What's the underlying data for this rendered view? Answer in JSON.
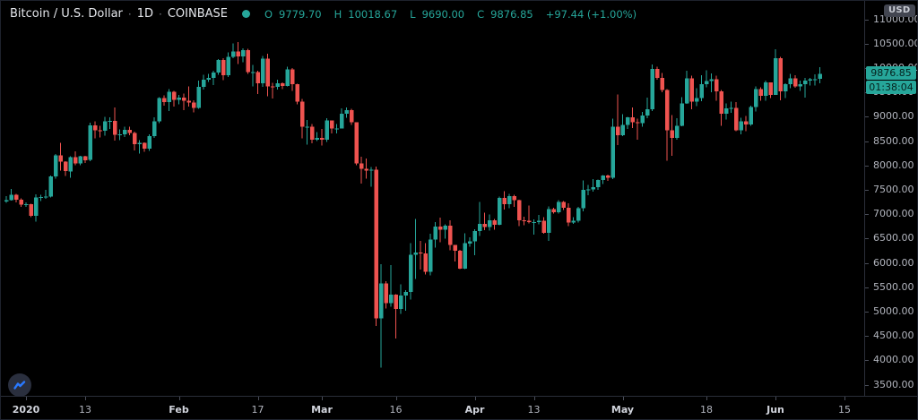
{
  "header": {
    "symbol_name": "Bitcoin / U.S. Dollar",
    "separator": "·",
    "interval": "1D",
    "exchange": "COINBASE",
    "ohlc": {
      "open_label": "O",
      "open": "9779.70",
      "high_label": "H",
      "high": "10018.67",
      "low_label": "L",
      "low": "9690.00",
      "close_label": "C",
      "close": "9876.85",
      "change": "+97.44 (+1.00%)"
    }
  },
  "price_scale": {
    "currency_badge": "USD",
    "labels": [
      "11000.00",
      "10500.00",
      "10000.00",
      "9500.00",
      "9000.00",
      "8500.00",
      "8000.00",
      "7500.00",
      "7000.00",
      "6500.00",
      "6000.00",
      "5500.00",
      "5000.00",
      "4500.00",
      "4000.00",
      "3500.00"
    ]
  },
  "time_scale": {
    "ticks": [
      {
        "label": "2020",
        "index": 4,
        "major": true
      },
      {
        "label": "13",
        "index": 16,
        "major": false
      },
      {
        "label": "Feb",
        "index": 35,
        "major": true
      },
      {
        "label": "17",
        "index": 51,
        "major": false
      },
      {
        "label": "Mar",
        "index": 64,
        "major": true
      },
      {
        "label": "16",
        "index": 79,
        "major": false
      },
      {
        "label": "Apr",
        "index": 95,
        "major": true
      },
      {
        "label": "13",
        "index": 107,
        "major": false
      },
      {
        "label": "May",
        "index": 125,
        "major": true
      },
      {
        "label": "18",
        "index": 142,
        "major": false
      },
      {
        "label": "Jun",
        "index": 156,
        "major": true
      },
      {
        "label": "15",
        "index": 170,
        "major": false
      }
    ]
  },
  "last_price": {
    "value": "9876.85",
    "countdown": "01:38:04"
  },
  "colors": {
    "up": "#26a69a",
    "down": "#ef5350",
    "background": "#000000",
    "axis_text": "#b2b5be",
    "border": "#2a2e39",
    "logo_blue": "#2979ff",
    "icon_gray": "#787b86"
  },
  "chart_data": {
    "type": "candlestick",
    "title": "Bitcoin / U.S. Dollar",
    "interval": "1D",
    "exchange": "COINBASE",
    "price_range": [
      3500,
      11000
    ],
    "price_tick_step": 500,
    "grid": false,
    "columns": [
      "date",
      "open",
      "high",
      "low",
      "close"
    ],
    "candles": [
      [
        "2019-12-28",
        7255,
        7365,
        7230,
        7290
      ],
      [
        "2019-12-29",
        7290,
        7520,
        7280,
        7397
      ],
      [
        "2019-12-30",
        7397,
        7420,
        7245,
        7294
      ],
      [
        "2019-12-31",
        7294,
        7320,
        7145,
        7193
      ],
      [
        "2020-01-01",
        7193,
        7245,
        7150,
        7200
      ],
      [
        "2020-01-02",
        7200,
        7212,
        6935,
        6965
      ],
      [
        "2020-01-03",
        6965,
        7405,
        6850,
        7344
      ],
      [
        "2020-01-04",
        7344,
        7398,
        7272,
        7354
      ],
      [
        "2020-01-05",
        7354,
        7495,
        7318,
        7358
      ],
      [
        "2020-01-06",
        7358,
        7790,
        7345,
        7771
      ],
      [
        "2020-01-07",
        7771,
        8230,
        7730,
        8205
      ],
      [
        "2020-01-08",
        8205,
        8460,
        7890,
        8080
      ],
      [
        "2020-01-09",
        8080,
        8082,
        7780,
        7879
      ],
      [
        "2020-01-10",
        7879,
        8190,
        7750,
        8166
      ],
      [
        "2020-01-11",
        8166,
        8290,
        8000,
        8037
      ],
      [
        "2020-01-12",
        8037,
        8200,
        8000,
        8192
      ],
      [
        "2020-01-13",
        8192,
        8195,
        8050,
        8110
      ],
      [
        "2020-01-14",
        8110,
        8880,
        8090,
        8820
      ],
      [
        "2020-01-15",
        8820,
        8900,
        8555,
        8720
      ],
      [
        "2020-01-16",
        8720,
        8810,
        8570,
        8710
      ],
      [
        "2020-01-17",
        8710,
        9000,
        8610,
        8900
      ],
      [
        "2020-01-18",
        8900,
        8990,
        8750,
        8915
      ],
      [
        "2020-01-19",
        8915,
        9190,
        8505,
        8630
      ],
      [
        "2020-01-20",
        8630,
        8740,
        8520,
        8640
      ],
      [
        "2020-01-21",
        8640,
        8790,
        8585,
        8730
      ],
      [
        "2020-01-22",
        8730,
        8795,
        8615,
        8670
      ],
      [
        "2020-01-23",
        8670,
        8690,
        8310,
        8440
      ],
      [
        "2020-01-24",
        8440,
        8520,
        8240,
        8460
      ],
      [
        "2020-01-25",
        8460,
        8470,
        8280,
        8340
      ],
      [
        "2020-01-26",
        8340,
        8640,
        8300,
        8600
      ],
      [
        "2020-01-27",
        8600,
        8990,
        8560,
        8900
      ],
      [
        "2020-01-28",
        8900,
        9400,
        8870,
        9380
      ],
      [
        "2020-01-29",
        9380,
        9440,
        9225,
        9300
      ],
      [
        "2020-01-30",
        9300,
        9570,
        9120,
        9510
      ],
      [
        "2020-01-31",
        9510,
        9530,
        9210,
        9350
      ],
      [
        "2020-02-01",
        9350,
        9450,
        9255,
        9390
      ],
      [
        "2020-02-02",
        9390,
        9470,
        9135,
        9330
      ],
      [
        "2020-02-03",
        9330,
        9620,
        9210,
        9290
      ],
      [
        "2020-02-04",
        9290,
        9340,
        9090,
        9180
      ],
      [
        "2020-02-05",
        9180,
        9740,
        9160,
        9615
      ],
      [
        "2020-02-06",
        9615,
        9860,
        9555,
        9760
      ],
      [
        "2020-02-07",
        9760,
        9880,
        9710,
        9800
      ],
      [
        "2020-02-08",
        9800,
        9945,
        9650,
        9905
      ],
      [
        "2020-02-09",
        9905,
        10180,
        9860,
        10160
      ],
      [
        "2020-02-10",
        10160,
        10200,
        9750,
        9855
      ],
      [
        "2020-02-11",
        9855,
        10320,
        9810,
        10230
      ],
      [
        "2020-02-12",
        10230,
        10500,
        10200,
        10340
      ],
      [
        "2020-02-13",
        10340,
        10530,
        10080,
        10240
      ],
      [
        "2020-02-14",
        10240,
        10400,
        10120,
        10370
      ],
      [
        "2020-02-15",
        10370,
        10395,
        9880,
        9920
      ],
      [
        "2020-02-16",
        9920,
        10060,
        9620,
        9920
      ],
      [
        "2020-02-17",
        9920,
        9945,
        9465,
        9690
      ],
      [
        "2020-02-18",
        9690,
        10250,
        9610,
        10190
      ],
      [
        "2020-02-19",
        10190,
        10290,
        9415,
        9620
      ],
      [
        "2020-02-20",
        9620,
        9695,
        9370,
        9610
      ],
      [
        "2020-02-21",
        9610,
        9755,
        9560,
        9690
      ],
      [
        "2020-02-22",
        9690,
        9700,
        9570,
        9630
      ],
      [
        "2020-02-23",
        9630,
        10030,
        9620,
        9970
      ],
      [
        "2020-02-24",
        9970,
        10000,
        9530,
        9670
      ],
      [
        "2020-02-25",
        9670,
        9680,
        9255,
        9310
      ],
      [
        "2020-02-26",
        9310,
        9360,
        8555,
        8790
      ],
      [
        "2020-02-27",
        8790,
        8930,
        8430,
        8790
      ],
      [
        "2020-02-28",
        8790,
        8850,
        8450,
        8530
      ],
      [
        "2020-02-29",
        8530,
        8680,
        8500,
        8565
      ],
      [
        "2020-03-01",
        8565,
        8750,
        8410,
        8530
      ],
      [
        "2020-03-02",
        8530,
        8970,
        8480,
        8920
      ],
      [
        "2020-03-03",
        8920,
        8920,
        8660,
        8760
      ],
      [
        "2020-03-04",
        8760,
        8845,
        8660,
        8760
      ],
      [
        "2020-03-05",
        8760,
        9170,
        8755,
        9060
      ],
      [
        "2020-03-06",
        9060,
        9185,
        8980,
        9130
      ],
      [
        "2020-03-07",
        9130,
        9160,
        8830,
        8890
      ],
      [
        "2020-03-08",
        8890,
        8890,
        8000,
        8040
      ],
      [
        "2020-03-09",
        8040,
        8180,
        7630,
        7930
      ],
      [
        "2020-03-10",
        7930,
        8140,
        7730,
        7890
      ],
      [
        "2020-03-11",
        7890,
        7970,
        7560,
        7910
      ],
      [
        "2020-03-12",
        7910,
        7980,
        4700,
        4860
      ],
      [
        "2020-03-13",
        4860,
        5970,
        3850,
        5580
      ],
      [
        "2020-03-14",
        5580,
        5620,
        5060,
        5170
      ],
      [
        "2020-03-15",
        5170,
        5950,
        5100,
        5350
      ],
      [
        "2020-03-16",
        5350,
        5360,
        4450,
        5050
      ],
      [
        "2020-03-17",
        5050,
        5560,
        4950,
        5330
      ],
      [
        "2020-03-18",
        5330,
        5440,
        5020,
        5400
      ],
      [
        "2020-03-19",
        5400,
        6400,
        5250,
        6170
      ],
      [
        "2020-03-20",
        6170,
        6900,
        5670,
        6210
      ],
      [
        "2020-03-21",
        6210,
        6450,
        5860,
        6190
      ],
      [
        "2020-03-22",
        6190,
        6400,
        5765,
        5815
      ],
      [
        "2020-03-23",
        5815,
        6600,
        5740,
        6480
      ],
      [
        "2020-03-24",
        6480,
        6840,
        6310,
        6740
      ],
      [
        "2020-03-25",
        6740,
        6930,
        6420,
        6680
      ],
      [
        "2020-03-26",
        6680,
        6790,
        6500,
        6760
      ],
      [
        "2020-03-27",
        6760,
        6870,
        6260,
        6370
      ],
      [
        "2020-03-28",
        6370,
        6370,
        6030,
        6250
      ],
      [
        "2020-03-29",
        6250,
        6270,
        5870,
        5880
      ],
      [
        "2020-03-30",
        5880,
        6605,
        5870,
        6400
      ],
      [
        "2020-03-31",
        6400,
        6520,
        6330,
        6440
      ],
      [
        "2020-04-01",
        6440,
        6690,
        6160,
        6650
      ],
      [
        "2020-04-02",
        6650,
        7250,
        6550,
        6800
      ],
      [
        "2020-04-03",
        6800,
        7030,
        6670,
        6740
      ],
      [
        "2020-04-04",
        6740,
        6995,
        6660,
        6870
      ],
      [
        "2020-04-05",
        6870,
        6900,
        6680,
        6780
      ],
      [
        "2020-04-06",
        6780,
        7360,
        6770,
        7330
      ],
      [
        "2020-04-07",
        7330,
        7470,
        7090,
        7200
      ],
      [
        "2020-04-08",
        7200,
        7420,
        7120,
        7370
      ],
      [
        "2020-04-09",
        7370,
        7400,
        7150,
        7290
      ],
      [
        "2020-04-10",
        7290,
        7300,
        6750,
        6870
      ],
      [
        "2020-04-11",
        6870,
        6950,
        6770,
        6860
      ],
      [
        "2020-04-12",
        6860,
        7180,
        6810,
        6840
      ],
      [
        "2020-04-13",
        6840,
        6890,
        6575,
        6840
      ],
      [
        "2020-04-14",
        6840,
        6980,
        6790,
        6860
      ],
      [
        "2020-04-15",
        6860,
        6935,
        6600,
        6620
      ],
      [
        "2020-04-16",
        6620,
        7160,
        6450,
        7100
      ],
      [
        "2020-04-17",
        7100,
        7135,
        7010,
        7035
      ],
      [
        "2020-04-18",
        7035,
        7290,
        7010,
        7250
      ],
      [
        "2020-04-19",
        7250,
        7270,
        7080,
        7130
      ],
      [
        "2020-04-20",
        7130,
        7220,
        6750,
        6830
      ],
      [
        "2020-04-21",
        6830,
        6940,
        6800,
        6860
      ],
      [
        "2020-04-22",
        6860,
        7150,
        6830,
        7125
      ],
      [
        "2020-04-23",
        7125,
        7690,
        7060,
        7500
      ],
      [
        "2020-04-24",
        7500,
        7600,
        7390,
        7510
      ],
      [
        "2020-04-25",
        7510,
        7720,
        7460,
        7550
      ],
      [
        "2020-04-26",
        7550,
        7710,
        7500,
        7700
      ],
      [
        "2020-04-27",
        7700,
        7805,
        7620,
        7790
      ],
      [
        "2020-04-28",
        7790,
        7810,
        7680,
        7750
      ],
      [
        "2020-04-29",
        7750,
        8955,
        7720,
        8790
      ],
      [
        "2020-04-30",
        8790,
        9460,
        8415,
        8620
      ],
      [
        "2020-05-01",
        8620,
        9050,
        8600,
        8830
      ],
      [
        "2020-05-02",
        8830,
        9000,
        8750,
        8985
      ],
      [
        "2020-05-03",
        8985,
        9190,
        8770,
        8890
      ],
      [
        "2020-05-04",
        8890,
        8955,
        8525,
        8870
      ],
      [
        "2020-05-05",
        8870,
        9100,
        8790,
        9020
      ],
      [
        "2020-05-06",
        9020,
        9395,
        8970,
        9150
      ],
      [
        "2020-05-07",
        9150,
        10070,
        9115,
        9980
      ],
      [
        "2020-05-08",
        9980,
        10030,
        9755,
        9800
      ],
      [
        "2020-05-09",
        9800,
        9900,
        9500,
        9550
      ],
      [
        "2020-05-10",
        9550,
        9570,
        8100,
        8720
      ],
      [
        "2020-05-11",
        8720,
        9030,
        8200,
        8560
      ],
      [
        "2020-05-12",
        8560,
        8970,
        8530,
        8810
      ],
      [
        "2020-05-13",
        8810,
        9400,
        8800,
        9270
      ],
      [
        "2020-05-14",
        9270,
        9940,
        9260,
        9790
      ],
      [
        "2020-05-15",
        9790,
        9845,
        9150,
        9310
      ],
      [
        "2020-05-16",
        9310,
        9580,
        9220,
        9380
      ],
      [
        "2020-05-17",
        9380,
        9850,
        9320,
        9670
      ],
      [
        "2020-05-18",
        9670,
        9950,
        9600,
        9730
      ],
      [
        "2020-05-19",
        9730,
        9890,
        9500,
        9770
      ],
      [
        "2020-05-20",
        9770,
        9840,
        9330,
        9520
      ],
      [
        "2020-05-21",
        9520,
        9550,
        8815,
        9060
      ],
      [
        "2020-05-22",
        9060,
        9270,
        8940,
        9170
      ],
      [
        "2020-05-23",
        9170,
        9310,
        9080,
        9180
      ],
      [
        "2020-05-24",
        9180,
        9300,
        8700,
        8720
      ],
      [
        "2020-05-25",
        8720,
        8980,
        8640,
        8900
      ],
      [
        "2020-05-26",
        8900,
        9015,
        8700,
        8840
      ],
      [
        "2020-05-27",
        8840,
        9225,
        8810,
        9200
      ],
      [
        "2020-05-28",
        9200,
        9625,
        9110,
        9570
      ],
      [
        "2020-05-29",
        9570,
        9605,
        9330,
        9425
      ],
      [
        "2020-05-30",
        9425,
        9740,
        9330,
        9700
      ],
      [
        "2020-05-31",
        9700,
        9700,
        9380,
        9450
      ],
      [
        "2020-06-01",
        9450,
        10380,
        9450,
        10200
      ],
      [
        "2020-06-02",
        10200,
        10230,
        9340,
        9520
      ],
      [
        "2020-06-03",
        9520,
        9690,
        9380,
        9665
      ],
      [
        "2020-06-04",
        9665,
        9880,
        9580,
        9790
      ],
      [
        "2020-06-05",
        9790,
        9850,
        9590,
        9620
      ],
      [
        "2020-06-06",
        9620,
        9740,
        9530,
        9670
      ],
      [
        "2020-06-07",
        9670,
        9800,
        9390,
        9745
      ],
      [
        "2020-06-08",
        9745,
        9800,
        9640,
        9770
      ],
      [
        "2020-06-09",
        9770,
        9870,
        9640,
        9770
      ],
      [
        "2020-06-10",
        9779.7,
        10018.67,
        9690.0,
        9876.85
      ]
    ]
  }
}
